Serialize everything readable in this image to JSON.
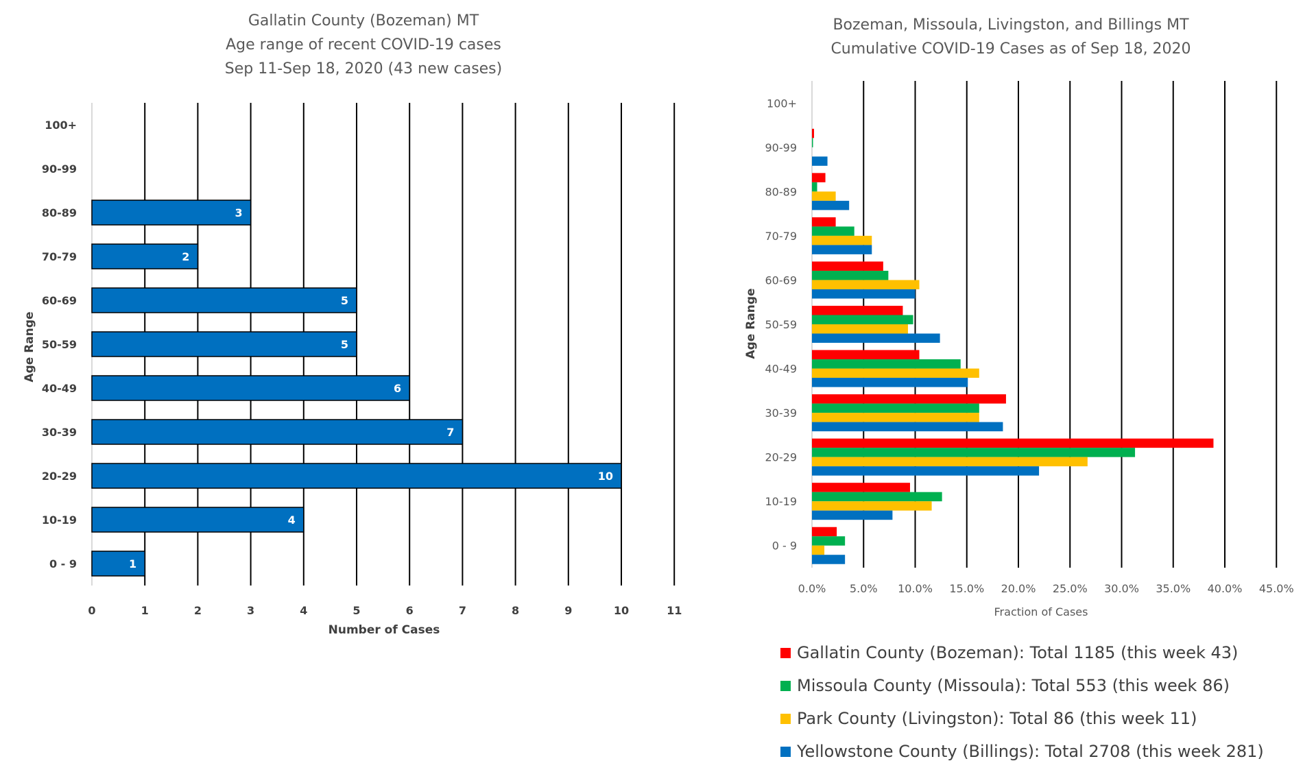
{
  "chart_data": [
    {
      "type": "bar",
      "orientation": "horizontal",
      "title_lines": [
        "Gallatin County (Bozeman) MT",
        "Age range of recent COVID-19 cases",
        "Sep 11-Sep 18, 2020 (43 new cases)"
      ],
      "xlabel": "Number of Cases",
      "ylabel": "Age Range",
      "xlim": [
        0,
        11
      ],
      "x_ticks": [
        "0",
        "1",
        "2",
        "3",
        "4",
        "5",
        "6",
        "7",
        "8",
        "9",
        "10",
        "11"
      ],
      "grid": "vertical",
      "categories": [
        "0 - 9",
        "10-19",
        "20-29",
        "30-39",
        "40-49",
        "50-59",
        "60-69",
        "70-79",
        "80-89",
        "90-99",
        "100+"
      ],
      "values": [
        1,
        4,
        10,
        7,
        6,
        5,
        5,
        2,
        3,
        0,
        0
      ],
      "data_labels": [
        "1",
        "4",
        "10",
        "7",
        "6",
        "5",
        "5",
        "2",
        "3",
        "",
        ""
      ],
      "bar_color": "#0070C0"
    },
    {
      "type": "bar",
      "orientation": "horizontal",
      "title_lines": [
        "Bozeman, Missoula, Livingston, and Billings MT",
        "Cumulative COVID-19 Cases as of Sep 18, 2020"
      ],
      "xlabel": "Fraction of Cases",
      "ylabel": "Age Range",
      "xlim": [
        0,
        45
      ],
      "x_ticks": [
        "0.0%",
        "5.0%",
        "10.0%",
        "15.0%",
        "20.0%",
        "25.0%",
        "30.0%",
        "35.0%",
        "40.0%",
        "45.0%"
      ],
      "grid": "vertical",
      "legend_position": "bottom",
      "categories": [
        "0 - 9",
        "10-19",
        "20-29",
        "30-39",
        "40-49",
        "50-59",
        "60-69",
        "70-79",
        "80-89",
        "90-99",
        "100+"
      ],
      "series": [
        {
          "name": "Gallatin County (Bozeman): Total 1185 (this week 43)",
          "color": "#FF0000",
          "values": [
            2.4,
            9.5,
            38.9,
            18.8,
            10.4,
            8.8,
            6.9,
            2.3,
            1.3,
            0.2,
            0
          ]
        },
        {
          "name": "Missoula County (Missoula): Total 553 (this week 86)",
          "color": "#00B050",
          "values": [
            3.2,
            12.6,
            31.3,
            16.2,
            14.4,
            9.8,
            7.4,
            4.1,
            0.5,
            0.1,
            0
          ]
        },
        {
          "name": "Park County (Livingston): Total 86 (this week 11)",
          "color": "#FFC000",
          "values": [
            1.2,
            11.6,
            26.7,
            16.2,
            16.2,
            9.3,
            10.4,
            5.8,
            2.3,
            0,
            0
          ]
        },
        {
          "name": "Yellowstone County (Billings): Total 2708 (this week 281)",
          "color": "#0070C0",
          "values": [
            3.2,
            7.8,
            22.0,
            18.5,
            15.1,
            12.4,
            10.0,
            5.8,
            3.6,
            1.5,
            0
          ]
        }
      ]
    }
  ]
}
